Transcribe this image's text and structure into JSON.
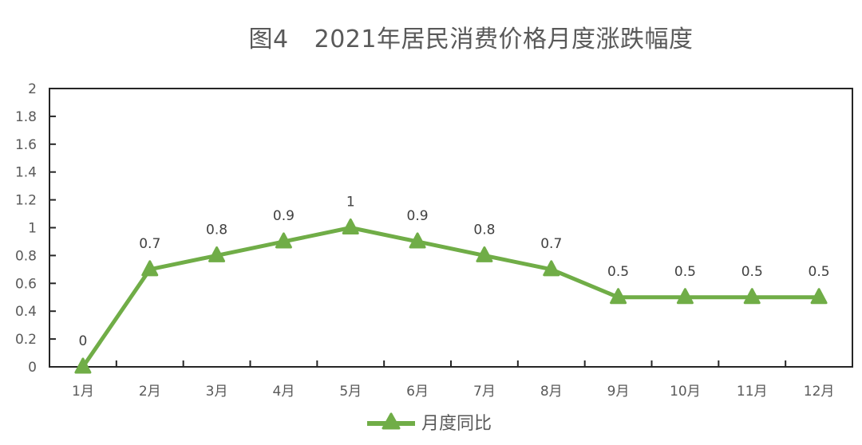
{
  "title": {
    "figure_no": "图4",
    "text": "2021年居民消费价格月度涨跌幅度"
  },
  "colors": {
    "series": "#70ad47",
    "axis": "#262626",
    "text": "#595959"
  },
  "legend": {
    "items": [
      {
        "label": "月度同比",
        "marker": "triangle-line"
      }
    ]
  },
  "chart_data": {
    "type": "line",
    "title": "图4 2021年居民消费价格月度涨跌幅度",
    "xlabel": "",
    "ylabel": "",
    "categories": [
      "1月",
      "2月",
      "3月",
      "4月",
      "5月",
      "6月",
      "7月",
      "8月",
      "9月",
      "10月",
      "11月",
      "12月"
    ],
    "series": [
      {
        "name": "月度同比",
        "values": [
          0,
          0.7,
          0.8,
          0.9,
          1,
          0.9,
          0.8,
          0.7,
          0.5,
          0.5,
          0.5,
          0.5
        ],
        "color": "#70ad47",
        "marker": "triangle"
      }
    ],
    "data_labels": [
      "0",
      "0.7",
      "0.8",
      "0.9",
      "1",
      "0.9",
      "0.8",
      "0.7",
      "0.5",
      "0.5",
      "0.5",
      "0.5"
    ],
    "ylim": [
      0,
      2
    ],
    "yticks": [
      "0",
      "0.2",
      "0.4",
      "0.6",
      "0.8",
      "1",
      "1.2",
      "1.4",
      "1.6",
      "1.8",
      "2"
    ],
    "grid": false,
    "legend_position": "bottom"
  }
}
